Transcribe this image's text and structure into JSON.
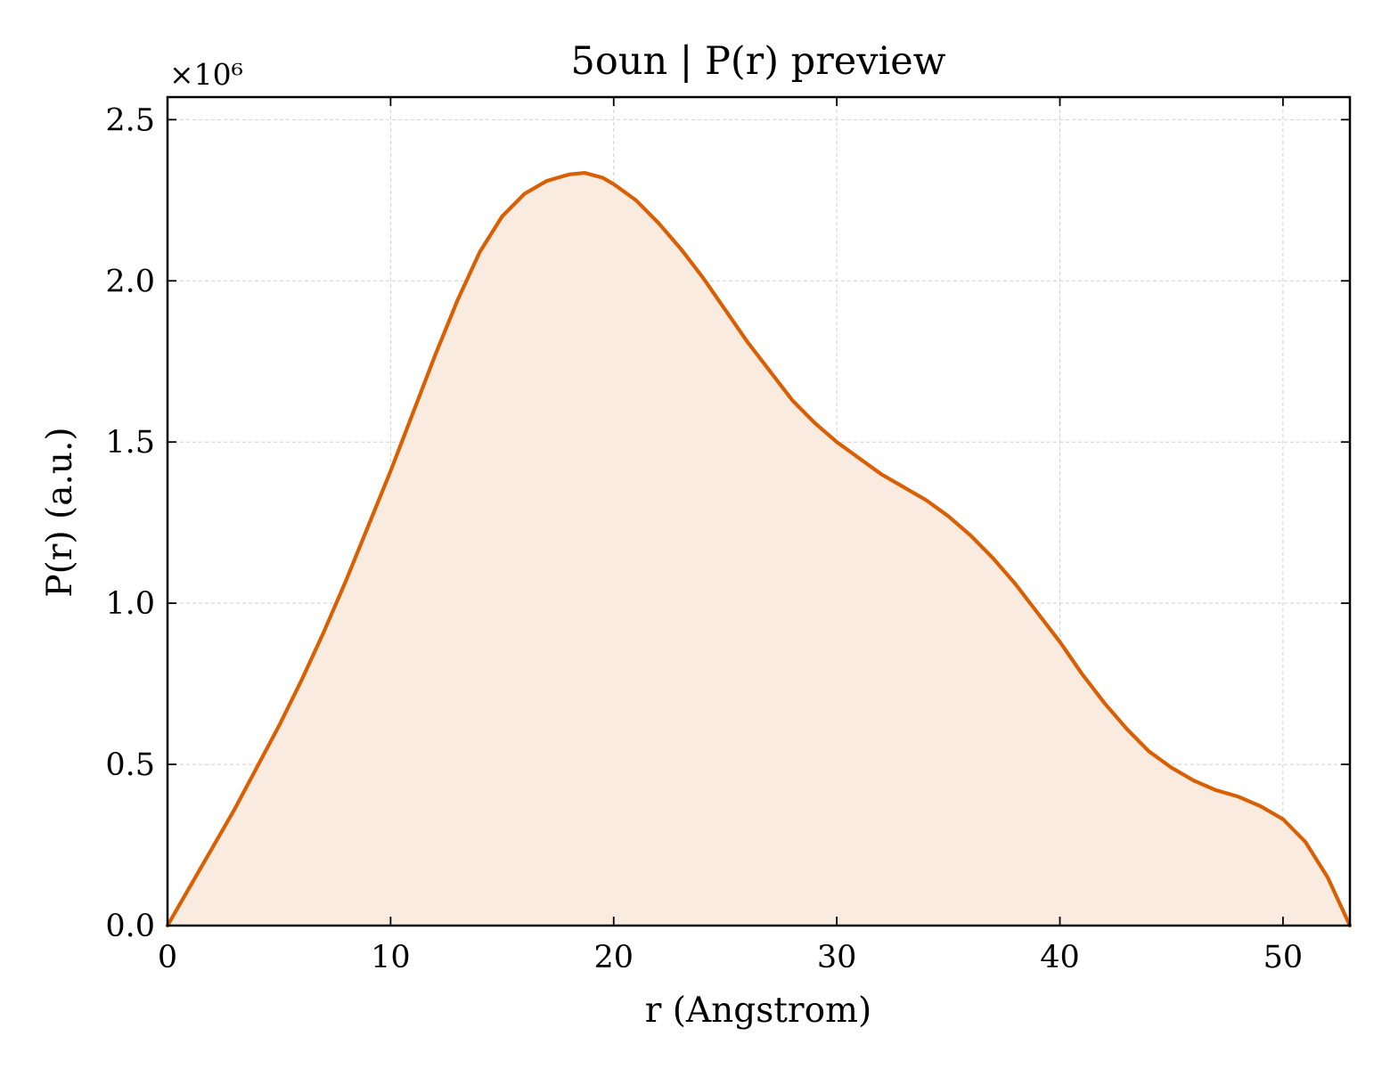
{
  "chart_data": {
    "type": "area",
    "title": "5oun | P(r) preview",
    "xlabel": "r (Angstrom)",
    "ylabel": "P(r) (a.u.)",
    "y_multiplier_label": "×10⁶",
    "xlim": [
      0,
      53
    ],
    "ylim": [
      0,
      2.57
    ],
    "xticks": [
      0,
      10,
      20,
      30,
      40,
      50
    ],
    "xtick_labels": [
      "0",
      "10",
      "20",
      "30",
      "40",
      "50"
    ],
    "yticks": [
      0,
      0.5,
      1.0,
      1.5,
      2.0,
      2.5
    ],
    "ytick_labels": [
      "0.0",
      "0.5",
      "1.0",
      "1.5",
      "2.0",
      "2.5"
    ],
    "grid": true,
    "colors": {
      "line": "#d95f02",
      "fill": "#f9ebe0"
    },
    "series": [
      {
        "x": [
          0,
          1,
          2,
          3,
          4,
          5,
          6,
          7,
          8,
          9,
          10,
          11,
          12,
          13,
          14,
          15,
          16,
          17,
          18,
          18.7,
          19.5,
          20,
          21,
          22,
          23,
          24,
          25,
          26,
          27,
          28,
          29,
          30,
          31,
          32,
          33,
          34,
          35,
          36,
          37,
          38,
          39,
          40,
          41,
          42,
          43,
          44,
          45,
          46,
          47,
          48,
          49,
          50,
          51,
          52,
          53
        ],
        "values": [
          0,
          0.12,
          0.24,
          0.36,
          0.49,
          0.62,
          0.76,
          0.91,
          1.07,
          1.24,
          1.41,
          1.59,
          1.77,
          1.94,
          2.09,
          2.2,
          2.27,
          2.31,
          2.33,
          2.335,
          2.32,
          2.3,
          2.25,
          2.18,
          2.1,
          2.01,
          1.91,
          1.81,
          1.72,
          1.63,
          1.56,
          1.5,
          1.45,
          1.4,
          1.36,
          1.32,
          1.27,
          1.21,
          1.14,
          1.06,
          0.97,
          0.88,
          0.78,
          0.69,
          0.61,
          0.54,
          0.49,
          0.45,
          0.42,
          0.4,
          0.37,
          0.33,
          0.26,
          0.15,
          0.0
        ]
      }
    ]
  }
}
